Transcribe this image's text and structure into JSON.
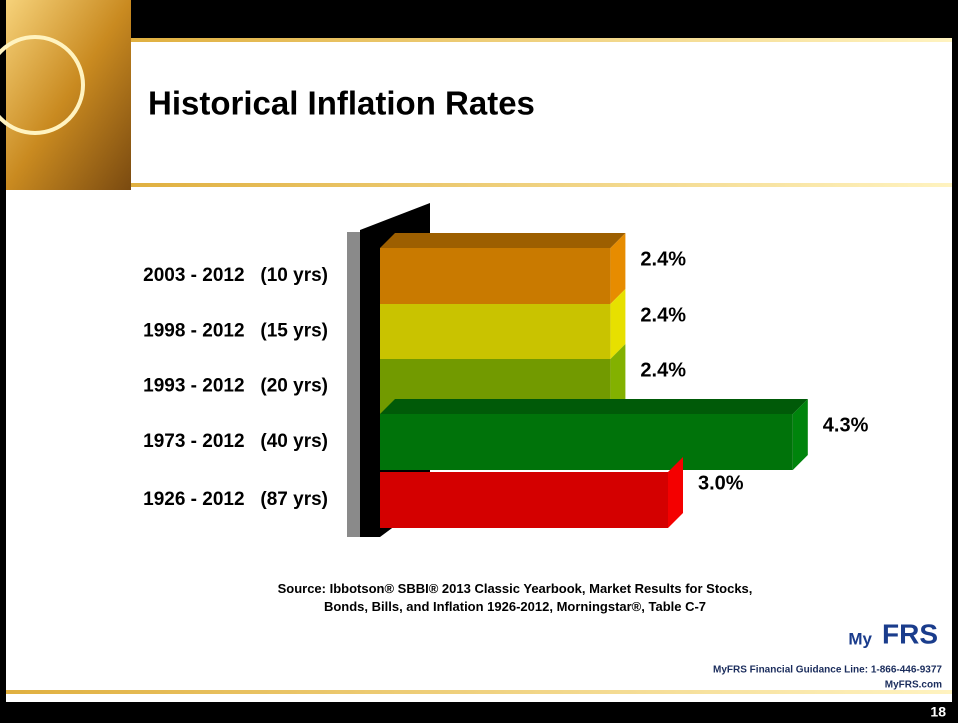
{
  "chart_data": {
    "type": "bar3d",
    "title": "Historical Inflation Rates",
    "categories": [
      "2003 - 2012   (10 yrs)",
      "1998 - 2012   (15 yrs)",
      "1993 - 2012   (20 yrs)",
      "1973 - 2012   (40 yrs)",
      "1926 - 2012   (87 yrs)"
    ],
    "values": [
      2.4,
      2.4,
      2.4,
      4.3,
      3.0
    ],
    "value_labels": [
      "2.4%",
      "2.4%",
      "2.4%",
      "4.3%",
      "3.0%"
    ],
    "colors": [
      "#c97a00",
      "#c9c300",
      "#729a00",
      "#00730a",
      "#d40000"
    ],
    "source": "Source: Ibbotson® SBBI® 2013 Classic Yearbook, Market Results for Stocks, Bonds, Bills, and Inflation 1926-2012, Morningstar®, Table C-7"
  },
  "footer": {
    "logo_my": "My",
    "logo_frs": "FRS",
    "guidance": "MyFRS Financial Guidance Line: 1-866-446-9377",
    "site": "MyFRS.com",
    "page": "18"
  }
}
